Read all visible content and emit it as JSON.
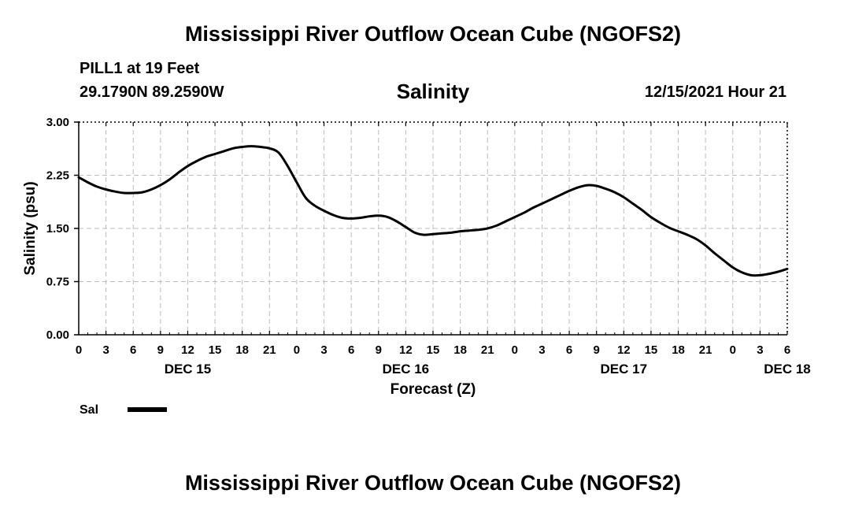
{
  "header": {
    "title": "Mississippi River Outflow Ocean Cube (NGOFS2)",
    "station": "PILL1 at 19 Feet",
    "coords": "29.1790N  89.2590W",
    "subtitle": "Salinity",
    "timestamp": "12/15/2021 Hour 21"
  },
  "footer": {
    "title": "Mississippi River Outflow Ocean Cube (NGOFS2)"
  },
  "chart_data": {
    "type": "line",
    "title": "Salinity",
    "xlabel": "Forecast (Z)",
    "ylabel": "Salinity (psu)",
    "xlim": [
      0,
      78
    ],
    "ylim": [
      0,
      3
    ],
    "yticks": [
      0,
      0.75,
      1.5,
      2.25,
      3
    ],
    "ytick_labels": [
      "0.00",
      "0.75",
      "1.50",
      "2.25",
      "3.00"
    ],
    "xtick_labels": [
      "0",
      "3",
      "6",
      "9",
      "12",
      "15",
      "18",
      "21",
      "0",
      "3",
      "6",
      "9",
      "12",
      "15",
      "18",
      "21",
      "0",
      "3",
      "6",
      "9",
      "12",
      "15",
      "18",
      "21",
      "0",
      "3",
      "6"
    ],
    "day_labels": [
      {
        "label": "DEC 15",
        "hour": 12
      },
      {
        "label": "DEC 16",
        "hour": 36
      },
      {
        "label": "DEC 17",
        "hour": 60
      },
      {
        "label": "DEC 18",
        "hour": 78
      }
    ],
    "grid": true,
    "legend": {
      "position": "bottom-left",
      "entries": [
        "Sal"
      ]
    },
    "series": [
      {
        "name": "Sal",
        "color": "#000000",
        "x": [
          0,
          1,
          2,
          3,
          4,
          5,
          6,
          7,
          8,
          9,
          10,
          11,
          12,
          13,
          14,
          15,
          16,
          17,
          18,
          19,
          20,
          21,
          22,
          23,
          24,
          25,
          26,
          27,
          28,
          29,
          30,
          31,
          32,
          33,
          34,
          35,
          36,
          37,
          38,
          39,
          40,
          41,
          42,
          43,
          44,
          45,
          46,
          47,
          48,
          49,
          50,
          51,
          52,
          53,
          54,
          55,
          56,
          57,
          58,
          59,
          60,
          61,
          62,
          63,
          64,
          65,
          66,
          67,
          68,
          69,
          70,
          71,
          72,
          73,
          74,
          75,
          76,
          77,
          78
        ],
        "values": [
          2.22,
          2.15,
          2.09,
          2.05,
          2.02,
          2.0,
          2.0,
          2.01,
          2.05,
          2.11,
          2.19,
          2.29,
          2.38,
          2.45,
          2.51,
          2.55,
          2.59,
          2.63,
          2.65,
          2.66,
          2.65,
          2.63,
          2.57,
          2.38,
          2.15,
          1.93,
          1.82,
          1.75,
          1.69,
          1.65,
          1.64,
          1.65,
          1.67,
          1.68,
          1.66,
          1.6,
          1.52,
          1.44,
          1.41,
          1.42,
          1.43,
          1.44,
          1.46,
          1.47,
          1.48,
          1.5,
          1.54,
          1.6,
          1.66,
          1.72,
          1.79,
          1.85,
          1.91,
          1.97,
          2.03,
          2.08,
          2.11,
          2.1,
          2.06,
          2.01,
          1.94,
          1.85,
          1.76,
          1.66,
          1.58,
          1.51,
          1.46,
          1.41,
          1.35,
          1.26,
          1.15,
          1.05,
          0.95,
          0.88,
          0.84,
          0.84,
          0.86,
          0.89,
          0.93
        ]
      }
    ]
  }
}
